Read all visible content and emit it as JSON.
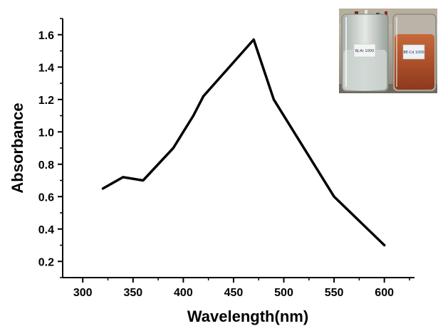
{
  "chart_data": {
    "type": "line",
    "title": "",
    "xlabel": "Wavelength(nm)",
    "ylabel": "Absorbance",
    "xlim": [
      280,
      630
    ],
    "ylim": [
      0.1,
      1.7
    ],
    "x_ticks": [
      300,
      350,
      400,
      450,
      500,
      550,
      600
    ],
    "y_ticks": [
      0.2,
      0.4,
      0.6,
      0.8,
      1.0,
      1.2,
      1.4,
      1.6
    ],
    "x_tick_labels": [
      "300",
      "350",
      "400",
      "450",
      "500",
      "550",
      "600"
    ],
    "y_tick_labels": [
      "0.2",
      "0.4",
      "0.6",
      "0.8",
      "1.0",
      "1.2",
      "1.4",
      "1.6"
    ],
    "grid": false,
    "legend": "none",
    "series": [
      {
        "x": [
          320,
          340,
          360,
          390,
          410,
          420,
          470,
          490,
          550,
          600
        ],
        "y": [
          0.65,
          0.72,
          0.7,
          0.9,
          1.1,
          1.22,
          1.57,
          1.2,
          0.6,
          0.3
        ],
        "color": "#000000"
      }
    ]
  },
  "inset_photo": {
    "description_icon": "beakers-photo-icon",
    "left_beaker_label": "Bj-Ar 1000",
    "right_beaker_label": "BE-Cd 1000",
    "left_liquid_color": "#cfd6d2",
    "right_liquid_color": "#b8502a"
  }
}
